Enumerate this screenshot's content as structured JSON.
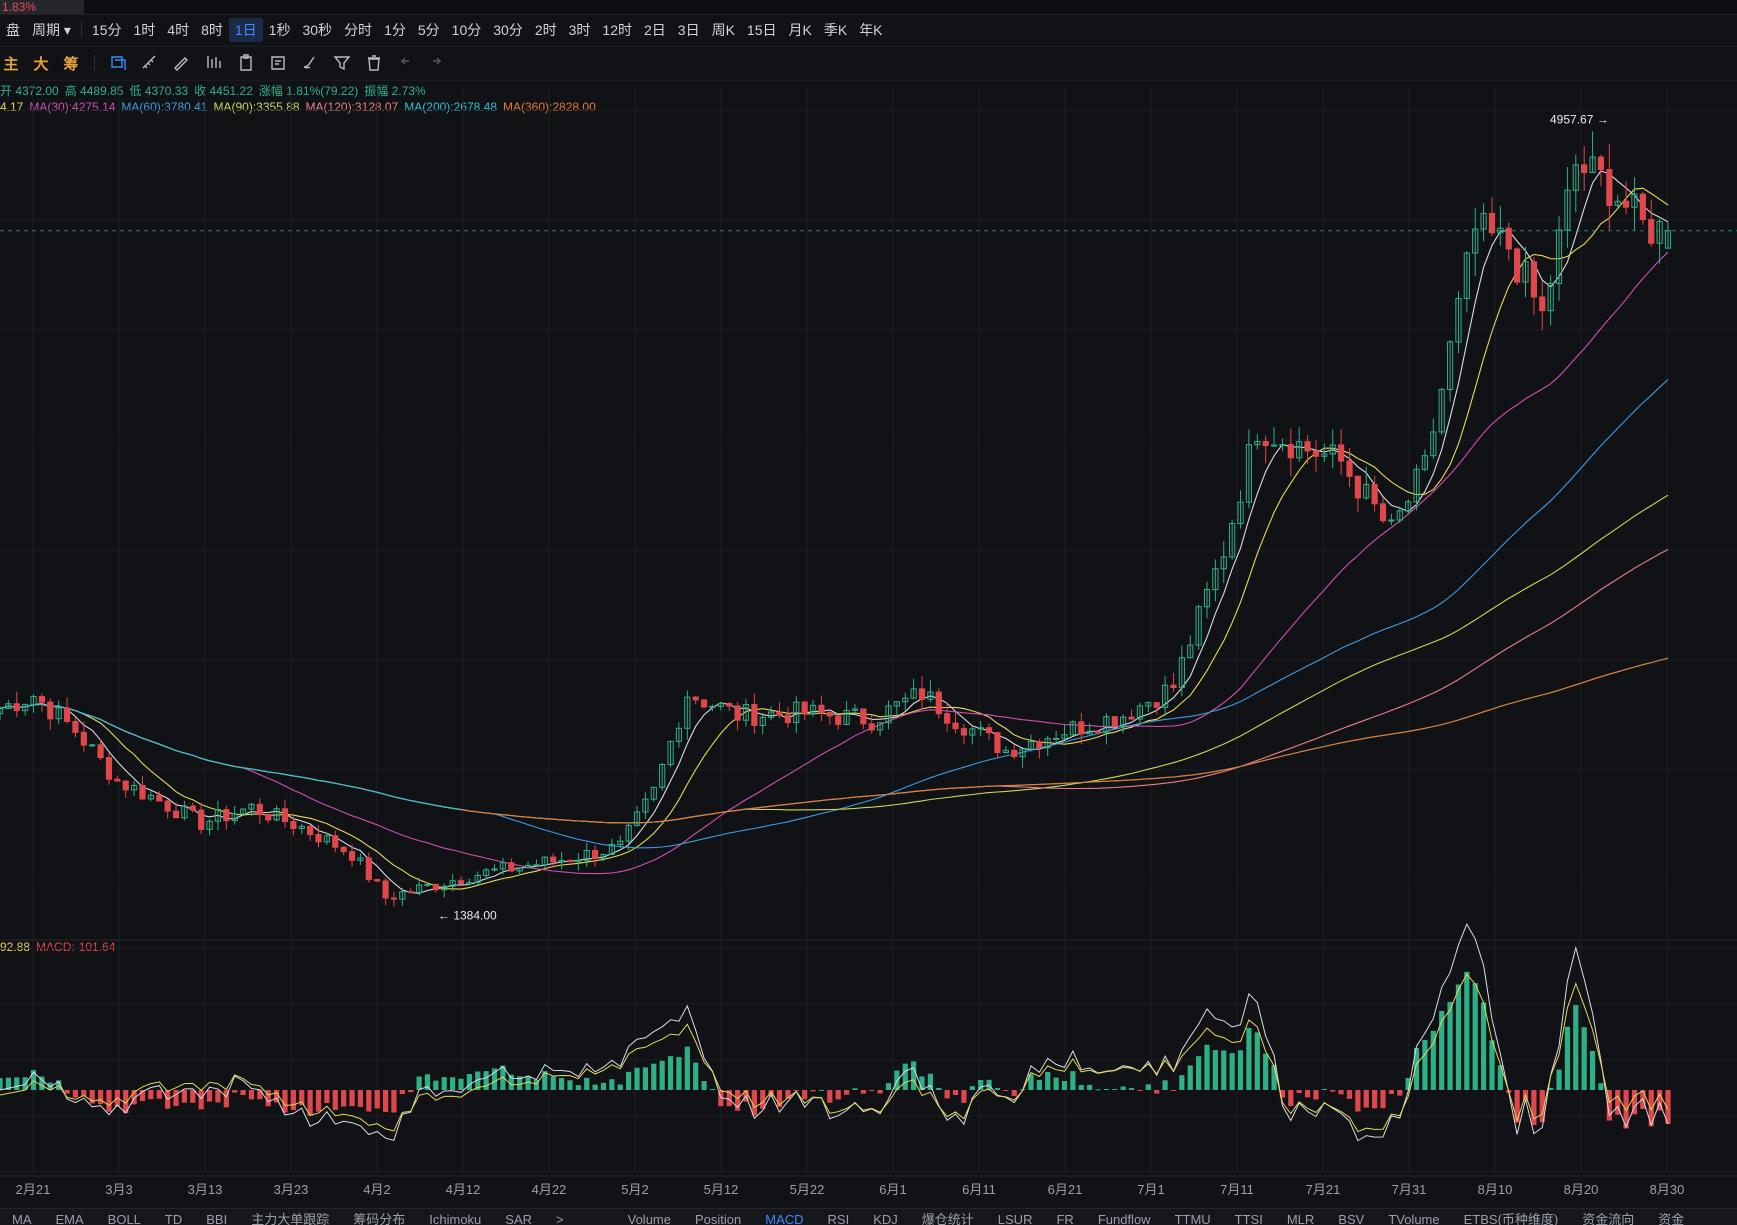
{
  "header": {
    "change_pct": "1.83%"
  },
  "timeframes": {
    "left": [
      {
        "label": "盘"
      },
      {
        "label": "周期"
      }
    ],
    "items": [
      {
        "label": "15分"
      },
      {
        "label": "1时"
      },
      {
        "label": "4时"
      },
      {
        "label": "8时"
      },
      {
        "label": "1日",
        "active": true
      },
      {
        "label": "1秒"
      },
      {
        "label": "30秒"
      },
      {
        "label": "分时"
      },
      {
        "label": "1分"
      },
      {
        "label": "5分"
      },
      {
        "label": "10分"
      },
      {
        "label": "30分"
      },
      {
        "label": "2时"
      },
      {
        "label": "3时"
      },
      {
        "label": "12时"
      },
      {
        "label": "2日"
      },
      {
        "label": "3日"
      },
      {
        "label": "周K"
      },
      {
        "label": "15日"
      },
      {
        "label": "月K"
      },
      {
        "label": "季K"
      },
      {
        "label": "年K"
      }
    ]
  },
  "drawing_tools": {
    "chips": [
      {
        "label": "主",
        "color": "#e8a23a"
      },
      {
        "label": "大",
        "color": "#e8a23a"
      },
      {
        "label": "筹",
        "color": "#e8a23a"
      }
    ],
    "icons": [
      "copy-icon",
      "ruler-icon",
      "pen-icon",
      "indicator-icon",
      "clipboard-icon",
      "note-icon",
      "brush-icon",
      "filter-icon",
      "trash-icon",
      "undo-icon",
      "redo-icon"
    ]
  },
  "ohlc_line": {
    "open": "开 4372.00",
    "high": "高 4489.85",
    "low": "低 4370.33",
    "close": "收 4451.22",
    "change": "涨幅 1.81%(79.22)",
    "amplitude": "振幅 2.73%"
  },
  "ma_legend": [
    {
      "label": "4.17",
      "color": "#e6d85a"
    },
    {
      "label": "MA(30):4275.14",
      "color": "#d04fb3"
    },
    {
      "label": "MA(60):3780.41",
      "color": "#3f9be6"
    },
    {
      "label": "MA(90):3355.88",
      "color": "#c8d85a"
    },
    {
      "label": "MA(120):3128.07",
      "color": "#e97e8a"
    },
    {
      "label": "MA(200):2678.48",
      "color": "#2ec2d2"
    },
    {
      "label": "MA(360):2828.00",
      "color": "#e8782c"
    }
  ],
  "macd_legend": [
    {
      "label": "92.88",
      "color": "#e6d85a"
    },
    {
      "label": "MACD:-101.64",
      "color": "#e0474c"
    }
  ],
  "colors": {
    "up": "#2eb087",
    "down": "#e0474c",
    "grid": "#1c1e23",
    "background": "#111215"
  },
  "chart_data": {
    "type": "candlestick",
    "title": "",
    "x_ticks": [
      "2月21",
      "3月3",
      "3月13",
      "3月23",
      "4月2",
      "4月12",
      "4月22",
      "5月2",
      "5月12",
      "5月22",
      "6月1",
      "6月11",
      "6月21",
      "7月1",
      "7月11",
      "7月21",
      "7月31",
      "8月10",
      "8月20",
      "8月30"
    ],
    "y_range": [
      1250,
      5100
    ],
    "grid": true,
    "candles": [
      [
        4372,
        4489.85,
        4370.33,
        4451.22
      ]
    ],
    "annotations": [
      {
        "label": "4957.67",
        "type": "high",
        "value": 4957.67,
        "date": "8月22"
      },
      {
        "label": "1384.00",
        "type": "low",
        "value": 1384.0,
        "date": "4月9"
      }
    ],
    "last_price": 4451.22,
    "macd": {
      "dif": -8.76,
      "dea": 92.88,
      "hist": -101.64
    },
    "ma_series": [
      {
        "name": "MA(30)",
        "last": 4275.14
      },
      {
        "name": "MA(60)",
        "last": 3780.41
      },
      {
        "name": "MA(90)",
        "last": 3355.88
      },
      {
        "name": "MA(120)",
        "last": 3128.07
      },
      {
        "name": "MA(200)",
        "last": 2678.48
      },
      {
        "name": "MA(360)",
        "last": 2828.0
      }
    ]
  },
  "bottom_tabs": {
    "left": [
      {
        "label": "MA"
      },
      {
        "label": "EMA"
      },
      {
        "label": "BOLL"
      },
      {
        "label": "TD"
      },
      {
        "label": "BBI"
      },
      {
        "label": "主力大单跟踪"
      },
      {
        "label": "筹码分布"
      },
      {
        "label": "Ichimoku"
      },
      {
        "label": "SAR"
      },
      {
        "label": ">"
      }
    ],
    "right": [
      {
        "label": "Volume"
      },
      {
        "label": "Position"
      },
      {
        "label": "MACD",
        "active": true
      },
      {
        "label": "RSI"
      },
      {
        "label": "KDJ"
      },
      {
        "label": "爆仓统计"
      },
      {
        "label": "LSUR"
      },
      {
        "label": "FR"
      },
      {
        "label": "Fundflow"
      },
      {
        "label": "TTMU"
      },
      {
        "label": "TTSI"
      },
      {
        "label": "MLR"
      },
      {
        "label": "BSV"
      },
      {
        "label": "TVolume"
      },
      {
        "label": "ETBS(币种维度)"
      },
      {
        "label": "资金流向"
      },
      {
        "label": "资金"
      }
    ]
  }
}
